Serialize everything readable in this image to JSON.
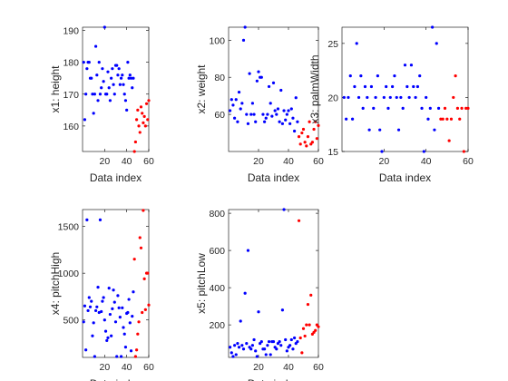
{
  "figure": {
    "background": "#ffffff",
    "colors": {
      "class1": "#0000ff",
      "class2": "#ff0000",
      "axis": "#000000",
      "text": "#262626"
    }
  },
  "chart_data": [
    {
      "type": "scatter",
      "xlabel": "Data index",
      "ylabel": "x1: height",
      "xlim": [
        0,
        60
      ],
      "ylim": [
        152,
        191
      ],
      "xticks": [
        20,
        40,
        60
      ],
      "yticks": [
        160,
        170,
        180,
        190
      ],
      "grid": false,
      "series": [
        {
          "color": "#0000ff",
          "x": [
            1,
            2,
            3,
            4,
            5,
            6,
            7,
            8,
            9,
            10,
            11,
            12,
            13,
            14,
            15,
            16,
            17,
            18,
            19,
            20,
            21,
            22,
            23,
            24,
            25,
            26,
            27,
            28,
            29,
            30,
            31,
            32,
            33,
            34,
            35,
            36,
            37,
            38,
            39,
            40,
            41,
            42,
            43,
            44,
            45,
            46
          ],
          "y": [
            180,
            162,
            170,
            178,
            180,
            180,
            175,
            175,
            170,
            164,
            170,
            185,
            176,
            168,
            180,
            170,
            172,
            178,
            174,
            191,
            170,
            170,
            177,
            172,
            168,
            175,
            178,
            173,
            170,
            179,
            179,
            176,
            178,
            173,
            175,
            176,
            173,
            170,
            168,
            165,
            180,
            175,
            176,
            175,
            172,
            175
          ]
        },
        {
          "color": "#ff0000",
          "x": [
            47,
            48,
            49,
            50,
            51,
            52,
            53,
            54,
            55,
            56,
            57,
            58,
            59,
            60
          ],
          "y": [
            152,
            155,
            162,
            165,
            160,
            158,
            166,
            164,
            161,
            163,
            160,
            167,
            162,
            168
          ]
        }
      ]
    },
    {
      "type": "scatter",
      "xlabel": "Data index",
      "ylabel": "x2: weight",
      "xlim": [
        0,
        60
      ],
      "ylim": [
        40,
        107
      ],
      "xticks": [
        20,
        40,
        60
      ],
      "yticks": [
        60,
        80,
        100
      ],
      "grid": false,
      "series": [
        {
          "color": "#0000ff",
          "x": [
            1,
            2,
            3,
            4,
            5,
            6,
            7,
            8,
            9,
            10,
            11,
            12,
            13,
            14,
            15,
            16,
            17,
            18,
            19,
            20,
            21,
            22,
            23,
            24,
            25,
            26,
            27,
            28,
            29,
            30,
            31,
            32,
            33,
            34,
            35,
            36,
            37,
            38,
            39,
            40,
            41,
            42,
            43,
            44,
            45,
            46
          ],
          "y": [
            62,
            68,
            65,
            58,
            68,
            56,
            72,
            63,
            66,
            100,
            107,
            60,
            55,
            82,
            60,
            66,
            60,
            56,
            78,
            83,
            80,
            80,
            60,
            56,
            58,
            60,
            75,
            66,
            59,
            77,
            62,
            60,
            63,
            56,
            73,
            55,
            62,
            57,
            60,
            62,
            55,
            63,
            58,
            51,
            69,
            56
          ]
        },
        {
          "color": "#ff0000",
          "x": [
            47,
            48,
            49,
            50,
            51,
            52,
            53,
            54,
            55,
            56,
            57,
            58,
            59,
            60
          ],
          "y": [
            48,
            44,
            50,
            52,
            45,
            43,
            48,
            56,
            44,
            45,
            52,
            56,
            47,
            54
          ]
        }
      ]
    },
    {
      "type": "scatter",
      "xlabel": "Data index",
      "ylabel": "x3: palmWidth",
      "xlim": [
        0,
        60
      ],
      "ylim": [
        15,
        26.5
      ],
      "xticks": [
        20,
        40,
        60
      ],
      "yticks": [
        15,
        20,
        25
      ],
      "grid": false,
      "series": [
        {
          "color": "#0000ff",
          "x": [
            1,
            2,
            3,
            4,
            5,
            6,
            7,
            8,
            9,
            10,
            11,
            12,
            13,
            14,
            15,
            16,
            17,
            18,
            19,
            20,
            21,
            22,
            23,
            24,
            25,
            26,
            27,
            28,
            29,
            30,
            31,
            32,
            33,
            34,
            35,
            36,
            37,
            38,
            39,
            40,
            41,
            42,
            43,
            44,
            45,
            46
          ],
          "y": [
            20,
            18,
            20,
            22,
            18,
            21,
            25,
            20,
            22,
            19,
            21,
            20,
            17,
            21,
            19,
            20,
            22,
            17,
            15,
            20,
            21,
            19,
            20,
            21,
            22,
            20,
            17,
            20,
            19,
            23,
            21,
            20,
            23,
            21,
            20,
            21,
            22,
            19,
            15,
            20,
            18,
            19,
            26.5,
            17,
            25,
            19
          ]
        },
        {
          "color": "#ff0000",
          "x": [
            47,
            48,
            49,
            50,
            51,
            52,
            53,
            54,
            55,
            56,
            57,
            58,
            59,
            60
          ],
          "y": [
            18,
            18,
            19,
            18,
            16,
            18,
            20,
            22,
            19,
            18,
            19,
            15,
            19,
            19
          ]
        }
      ]
    },
    {
      "type": "scatter",
      "xlabel": "Data index",
      "ylabel": "x4: pitchHigh",
      "xlim": [
        0,
        60
      ],
      "ylim": [
        100,
        1680
      ],
      "xticks": [
        20,
        40,
        60
      ],
      "yticks": [
        500,
        1000,
        1500
      ],
      "grid": false,
      "series": [
        {
          "color": "#0000ff",
          "x": [
            1,
            2,
            3,
            4,
            5,
            6,
            7,
            8,
            9,
            10,
            11,
            12,
            13,
            14,
            15,
            16,
            17,
            18,
            19,
            20,
            21,
            22,
            23,
            24,
            25,
            26,
            27,
            28,
            29,
            30,
            31,
            32,
            33,
            34,
            35,
            36,
            37,
            38,
            39,
            40,
            41,
            42,
            43,
            44,
            45,
            46
          ],
          "y": [
            480,
            650,
            180,
            1570,
            600,
            740,
            640,
            700,
            330,
            470,
            110,
            600,
            640,
            850,
            580,
            1570,
            590,
            700,
            740,
            500,
            380,
            280,
            310,
            840,
            560,
            330,
            620,
            820,
            690,
            480,
            110,
            760,
            630,
            530,
            110,
            630,
            420,
            350,
            210,
            570,
            580,
            720,
            470,
            170,
            540,
            800
          ]
        },
        {
          "color": "#ff0000",
          "x": [
            47,
            48,
            49,
            50,
            51,
            52,
            53,
            54,
            55,
            56,
            57,
            58,
            59,
            60
          ],
          "y": [
            1150,
            110,
            180,
            350,
            480,
            1380,
            1270,
            580,
            1670,
            940,
            610,
            1000,
            1000,
            660
          ]
        }
      ]
    },
    {
      "type": "scatter",
      "xlabel": "Data index",
      "ylabel": "x5: pitchLow",
      "xlim": [
        0,
        60
      ],
      "ylim": [
        25,
        820
      ],
      "xticks": [
        20,
        40,
        60
      ],
      "yticks": [
        200,
        400,
        600,
        800
      ],
      "grid": false,
      "series": [
        {
          "color": "#0000ff",
          "x": [
            1,
            2,
            3,
            4,
            5,
            6,
            7,
            8,
            9,
            10,
            11,
            12,
            13,
            14,
            15,
            16,
            17,
            18,
            19,
            20,
            21,
            22,
            23,
            24,
            25,
            26,
            27,
            28,
            29,
            30,
            31,
            32,
            33,
            34,
            35,
            36,
            37,
            38,
            39,
            40,
            41,
            42,
            43,
            44,
            45,
            46
          ],
          "y": [
            80,
            50,
            30,
            90,
            40,
            100,
            80,
            220,
            90,
            70,
            370,
            100,
            600,
            80,
            70,
            90,
            120,
            60,
            30,
            270,
            100,
            110,
            70,
            70,
            40,
            90,
            110,
            40,
            110,
            110,
            80,
            70,
            100,
            110,
            90,
            280,
            820,
            120,
            60,
            80,
            90,
            120,
            70,
            130,
            100,
            110
          ]
        },
        {
          "color": "#ff0000",
          "x": [
            47,
            48,
            49,
            50,
            51,
            52,
            53,
            54,
            55,
            56,
            57,
            58,
            59,
            60
          ],
          "y": [
            760,
            130,
            50,
            180,
            140,
            200,
            310,
            200,
            360,
            150,
            160,
            170,
            200,
            190
          ]
        }
      ]
    }
  ]
}
